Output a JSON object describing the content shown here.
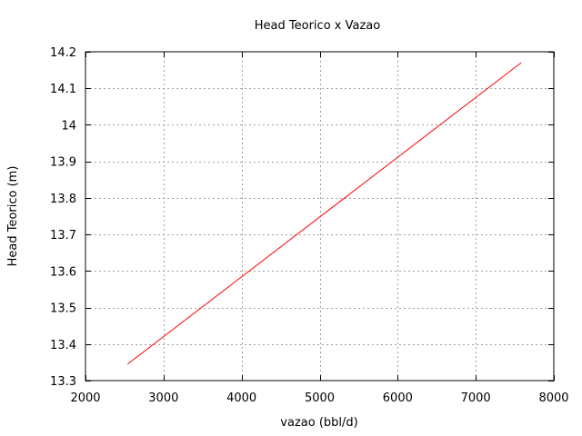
{
  "chart_data": {
    "type": "line",
    "title": "Head Teorico x Vazao",
    "xlabel": "vazao (bbl/d)",
    "ylabel": "Head Teorico (m)",
    "xlim": [
      2000,
      8000
    ],
    "ylim": [
      13.3,
      14.2
    ],
    "xticks": [
      "2000",
      "3000",
      "4000",
      "5000",
      "6000",
      "7000",
      "8000"
    ],
    "yticks": [
      "13.3",
      "13.4",
      "13.5",
      "13.6",
      "13.7",
      "13.8",
      "13.9",
      "14",
      "14.1",
      "14.2"
    ],
    "grid": true,
    "series": [
      {
        "color": "#ff0000",
        "x": [
          2540,
          7580
        ],
        "y": [
          13.345,
          14.17
        ]
      }
    ]
  }
}
